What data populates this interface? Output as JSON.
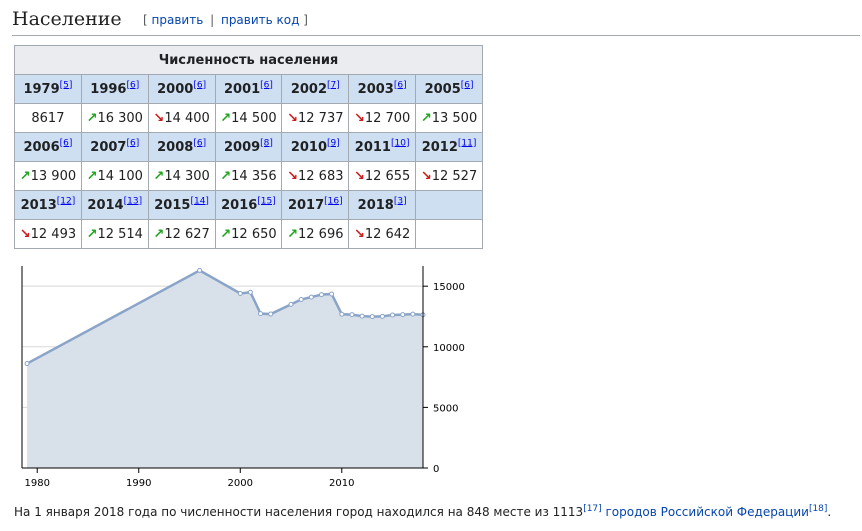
{
  "section": {
    "title": "Население",
    "edit_open": "[",
    "edit_link": "править",
    "edit_sep": "|",
    "edit_code_link": "править код",
    "edit_close": "]"
  },
  "table": {
    "caption": "Численность населения",
    "rows": [
      [
        {
          "year": "1979",
          "ref": "[5]",
          "value": "8617",
          "trend": ""
        },
        {
          "year": "1996",
          "ref": "[6]",
          "value": "16 300",
          "trend": "up"
        },
        {
          "year": "2000",
          "ref": "[6]",
          "value": "14 400",
          "trend": "down"
        },
        {
          "year": "2001",
          "ref": "[6]",
          "value": "14 500",
          "trend": "up"
        },
        {
          "year": "2002",
          "ref": "[7]",
          "value": "12 737",
          "trend": "down"
        },
        {
          "year": "2003",
          "ref": "[6]",
          "value": "12 700",
          "trend": "down"
        },
        {
          "year": "2005",
          "ref": "[6]",
          "value": "13 500",
          "trend": "up"
        }
      ],
      [
        {
          "year": "2006",
          "ref": "[6]",
          "value": "13 900",
          "trend": "up"
        },
        {
          "year": "2007",
          "ref": "[6]",
          "value": "14 100",
          "trend": "up"
        },
        {
          "year": "2008",
          "ref": "[6]",
          "value": "14 300",
          "trend": "up"
        },
        {
          "year": "2009",
          "ref": "[8]",
          "value": "14 356",
          "trend": "up"
        },
        {
          "year": "2010",
          "ref": "[9]",
          "value": "12 683",
          "trend": "down"
        },
        {
          "year": "2011",
          "ref": "[10]",
          "value": "12 655",
          "trend": "down"
        },
        {
          "year": "2012",
          "ref": "[11]",
          "value": "12 527",
          "trend": "down"
        }
      ],
      [
        {
          "year": "2013",
          "ref": "[12]",
          "value": "12 493",
          "trend": "down"
        },
        {
          "year": "2014",
          "ref": "[13]",
          "value": "12 514",
          "trend": "up"
        },
        {
          "year": "2015",
          "ref": "[14]",
          "value": "12 627",
          "trend": "up"
        },
        {
          "year": "2016",
          "ref": "[15]",
          "value": "12 650",
          "trend": "up"
        },
        {
          "year": "2017",
          "ref": "[16]",
          "value": "12 696",
          "trend": "up"
        },
        {
          "year": "2018",
          "ref": "[3]",
          "value": "12 642",
          "trend": "down"
        }
      ]
    ]
  },
  "trend_icons": {
    "up": "↗",
    "down": "↘"
  },
  "chart_data": {
    "type": "area",
    "title": "",
    "xlabel": "",
    "ylabel": "",
    "x": [
      1979,
      1996,
      2000,
      2001,
      2002,
      2003,
      2005,
      2006,
      2007,
      2008,
      2009,
      2010,
      2011,
      2012,
      2013,
      2014,
      2015,
      2016,
      2017,
      2018
    ],
    "y": [
      8617,
      16300,
      14400,
      14500,
      12737,
      12700,
      13500,
      13900,
      14100,
      14300,
      14356,
      12683,
      12655,
      12527,
      12493,
      12514,
      12627,
      12650,
      12696,
      12642
    ],
    "xlim": [
      1978.5,
      2018
    ],
    "ylim": [
      0,
      16500
    ],
    "xticks": [
      1980,
      1990,
      2000,
      2010
    ],
    "yticks": [
      0,
      5000,
      10000,
      15000
    ],
    "grid": true,
    "legend": "none",
    "line_color": "#8aa4c8",
    "fill_color": "#d8e1ea",
    "grid_color": "#d8d8d8"
  },
  "footer": {
    "text": "На 1 января 2018 года по численности населения город находился на 848 месте из 1113",
    "ref1": "[17]",
    "link": "городов Российской Федерации",
    "ref2": "[18]",
    "end": "."
  }
}
